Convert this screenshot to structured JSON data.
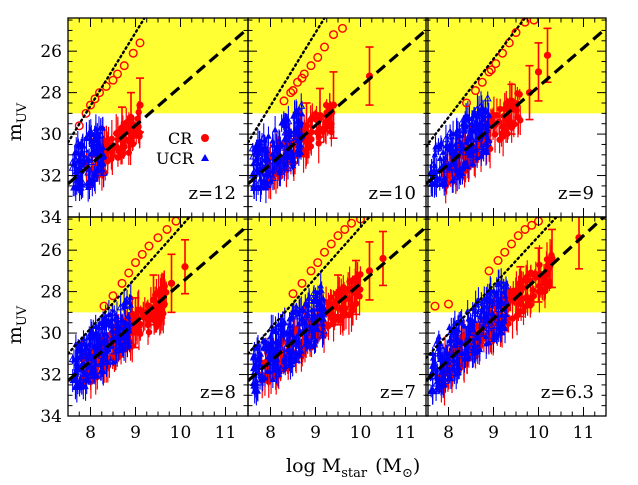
{
  "chart_data": {
    "type": "scatter",
    "layout": {
      "rows": 2,
      "cols": 3,
      "shared_x": true,
      "shared_y": true
    },
    "xlabel": "log M",
    "xlabel_subscript": "star",
    "xlabel_unit": "(M",
    "xlabel_unit_sub": "⊙",
    "xlabel_unit_close": ")",
    "ylabel": "m",
    "ylabel_subscript": "UV",
    "xlim": [
      7.5,
      11.5
    ],
    "ylim": [
      34,
      24.4
    ],
    "y_inverted": true,
    "xticks": [
      8,
      9,
      10,
      11
    ],
    "yticks": [
      26,
      28,
      30,
      32,
      34
    ],
    "highlight_band": {
      "y_from": 24.4,
      "y_to": 29.0,
      "color": "#ffff33"
    },
    "legend": {
      "location": "top-panel-left, inside",
      "entries": [
        {
          "label": "CR",
          "marker": "circle",
          "color": "#ff0000"
        },
        {
          "label": "UCR",
          "marker": "triangle",
          "color": "#0000ff"
        }
      ]
    },
    "colors": {
      "cr": "#ff0000",
      "ucr": "#0000ff",
      "band": "#ffff33",
      "line": "#000000"
    },
    "panels": [
      {
        "label": "z=12",
        "dashed_fit": {
          "x": [
            7.5,
            11.5
          ],
          "y": [
            32.4,
            24.9
          ]
        },
        "dotted_fit": {
          "x": [
            7.5,
            9.2
          ],
          "y": [
            30.4,
            24.4
          ]
        },
        "ucr_cloud": {
          "x_range": [
            7.6,
            8.3
          ],
          "y_range": [
            29.2,
            32.6
          ],
          "count": 110
        },
        "cr_cloud": {
          "x_range": [
            7.9,
            9.1
          ],
          "y_range": [
            30.2,
            32.8
          ],
          "count": 80
        },
        "open_circles": [
          [
            7.75,
            29.6
          ],
          [
            7.9,
            29.0
          ],
          [
            8.0,
            28.6
          ],
          [
            8.1,
            28.3
          ],
          [
            8.2,
            28.0
          ],
          [
            8.35,
            27.7
          ],
          [
            8.5,
            27.4
          ],
          [
            8.6,
            27.1
          ],
          [
            8.75,
            26.7
          ],
          [
            8.95,
            26.1
          ],
          [
            9.1,
            25.6
          ]
        ],
        "filled_circles_err": [
          [
            8.9,
            29.2,
            1.2
          ],
          [
            9.1,
            28.6,
            1.3
          ],
          [
            8.7,
            29.7,
            1.0
          ]
        ]
      },
      {
        "label": "z=10",
        "dashed_fit": {
          "x": [
            7.5,
            11.5
          ],
          "y": [
            32.4,
            24.9
          ]
        },
        "dotted_fit": {
          "x": [
            7.5,
            9.2
          ],
          "y": [
            30.4,
            24.4
          ]
        },
        "ucr_cloud": {
          "x_range": [
            7.6,
            8.7
          ],
          "y_range": [
            28.2,
            32.6
          ],
          "count": 150
        },
        "cr_cloud": {
          "x_range": [
            7.9,
            9.4
          ],
          "y_range": [
            29.6,
            32.8
          ],
          "count": 110
        },
        "open_circles": [
          [
            8.3,
            28.4
          ],
          [
            8.5,
            27.9
          ],
          [
            8.6,
            27.5
          ],
          [
            8.75,
            27.1
          ],
          [
            8.9,
            26.7
          ],
          [
            9.05,
            26.3
          ],
          [
            9.2,
            25.8
          ],
          [
            9.4,
            25.2
          ],
          [
            9.6,
            24.9
          ],
          [
            8.7,
            27.3
          ],
          [
            8.45,
            28.0
          ]
        ],
        "filled_circles_err": [
          [
            10.2,
            27.2,
            1.4
          ],
          [
            9.4,
            28.6,
            1.6
          ],
          [
            9.1,
            29.1,
            1.3
          ],
          [
            8.8,
            29.6,
            1.1
          ]
        ]
      },
      {
        "label": "z=9",
        "dashed_fit": {
          "x": [
            7.5,
            11.5
          ],
          "y": [
            32.4,
            24.9
          ]
        },
        "dotted_fit": {
          "x": [
            7.5,
            9.7
          ],
          "y": [
            30.6,
            24.4
          ]
        },
        "ucr_cloud": {
          "x_range": [
            7.6,
            8.9
          ],
          "y_range": [
            28.0,
            32.4
          ],
          "count": 170
        },
        "cr_cloud": {
          "x_range": [
            7.9,
            9.6
          ],
          "y_range": [
            29.2,
            32.8
          ],
          "count": 120
        },
        "open_circles": [
          [
            8.4,
            28.5
          ],
          [
            8.6,
            27.9
          ],
          [
            8.75,
            27.5
          ],
          [
            8.9,
            27.0
          ],
          [
            9.05,
            26.6
          ],
          [
            9.2,
            26.1
          ],
          [
            9.35,
            25.6
          ],
          [
            9.5,
            25.1
          ],
          [
            9.7,
            24.6
          ],
          [
            9.9,
            24.5
          ],
          [
            8.95,
            26.9
          ]
        ],
        "filled_circles_err": [
          [
            10.2,
            26.2,
            1.3
          ],
          [
            10.0,
            27.0,
            1.4
          ],
          [
            9.8,
            28.0,
            1.3
          ],
          [
            9.4,
            28.8,
            1.2
          ]
        ]
      },
      {
        "label": "z=8",
        "dashed_fit": {
          "x": [
            7.5,
            11.5
          ],
          "y": [
            32.3,
            24.8
          ]
        },
        "dotted_fit": {
          "x": [
            7.5,
            10.2
          ],
          "y": [
            31.0,
            24.4
          ]
        },
        "ucr_cloud": {
          "x_range": [
            7.6,
            8.9
          ],
          "y_range": [
            27.8,
            32.6
          ],
          "count": 190
        },
        "cr_cloud": {
          "x_range": [
            7.8,
            9.7
          ],
          "y_range": [
            29.0,
            33.0
          ],
          "count": 150
        },
        "open_circles": [
          [
            8.5,
            28.2
          ],
          [
            8.7,
            27.6
          ],
          [
            8.85,
            27.1
          ],
          [
            9.0,
            26.6
          ],
          [
            9.15,
            26.2
          ],
          [
            9.3,
            25.8
          ],
          [
            9.5,
            25.4
          ],
          [
            9.7,
            25.0
          ],
          [
            9.9,
            24.6
          ],
          [
            8.3,
            28.7
          ]
        ],
        "filled_circles_err": [
          [
            10.1,
            26.8,
            1.3
          ],
          [
            9.8,
            27.6,
            1.4
          ],
          [
            9.4,
            28.4,
            1.2
          ],
          [
            9.0,
            29.5,
            1.2
          ]
        ]
      },
      {
        "label": "z=7",
        "dashed_fit": {
          "x": [
            7.5,
            11.5
          ],
          "y": [
            32.3,
            24.8
          ]
        },
        "dotted_fit": {
          "x": [
            7.5,
            10.2
          ],
          "y": [
            31.0,
            24.4
          ]
        },
        "ucr_cloud": {
          "x_range": [
            7.6,
            9.2
          ],
          "y_range": [
            27.6,
            32.8
          ],
          "count": 200
        },
        "cr_cloud": {
          "x_range": [
            7.8,
            10.0
          ],
          "y_range": [
            28.4,
            33.0
          ],
          "count": 170
        },
        "open_circles": [
          [
            8.7,
            27.6
          ],
          [
            8.9,
            27.0
          ],
          [
            9.05,
            26.6
          ],
          [
            9.2,
            26.1
          ],
          [
            9.35,
            25.7
          ],
          [
            9.5,
            25.3
          ],
          [
            9.65,
            25.0
          ],
          [
            9.8,
            24.7
          ],
          [
            10.0,
            24.5
          ],
          [
            8.5,
            28.1
          ]
        ],
        "filled_circles_err": [
          [
            10.5,
            26.4,
            1.3
          ],
          [
            10.2,
            27.0,
            1.4
          ],
          [
            9.9,
            27.8,
            1.3
          ],
          [
            9.5,
            28.4,
            1.2
          ]
        ]
      },
      {
        "label": "z=6.3",
        "dashed_fit": {
          "x": [
            7.5,
            11.5
          ],
          "y": [
            32.3,
            24.3
          ]
        },
        "dotted_fit": {
          "x": [
            7.5,
            10.4
          ],
          "y": [
            31.2,
            24.4
          ]
        },
        "ucr_cloud": {
          "x_range": [
            7.6,
            9.3
          ],
          "y_range": [
            27.6,
            32.8
          ],
          "count": 210
        },
        "cr_cloud": {
          "x_range": [
            7.8,
            10.3
          ],
          "y_range": [
            27.8,
            33.0
          ],
          "count": 190
        },
        "open_circles": [
          [
            8.9,
            27.0
          ],
          [
            9.1,
            26.5
          ],
          [
            9.25,
            26.1
          ],
          [
            9.4,
            25.7
          ],
          [
            9.55,
            25.3
          ],
          [
            9.7,
            25.0
          ],
          [
            9.85,
            24.8
          ],
          [
            10.0,
            24.6
          ],
          [
            7.7,
            28.7
          ],
          [
            8.0,
            28.6
          ]
        ],
        "filled_circles_err": [
          [
            10.9,
            25.4,
            1.5
          ],
          [
            10.3,
            26.4,
            1.4
          ],
          [
            10.0,
            27.2,
            1.3
          ],
          [
            9.6,
            28.0,
            1.2
          ]
        ]
      }
    ]
  }
}
